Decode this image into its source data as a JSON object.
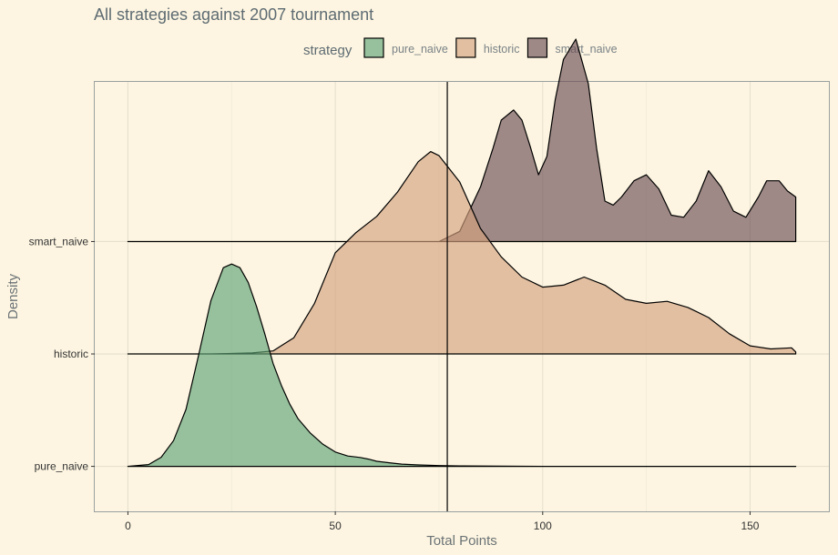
{
  "chart_data": {
    "type": "area",
    "subtype": "ridgeline-density",
    "title": "All strategies against 2007 tournament",
    "xlabel": "Total Points",
    "ylabel": "Density",
    "xlim": [
      -8,
      169
    ],
    "x_ticks": [
      0,
      50,
      100,
      150
    ],
    "x_tick_labels": [
      "0",
      "50",
      "100",
      "150"
    ],
    "grid": true,
    "legend": {
      "title": "strategy",
      "position": "top",
      "entries": [
        "pure_naive",
        "historic",
        "smart_naive"
      ]
    },
    "ridges": [
      "pure_naive",
      "historic",
      "smart_naive"
    ],
    "vline_x": 77,
    "ridge_scale": 1.8,
    "series": [
      {
        "name": "pure_naive",
        "color": "#5FA577",
        "x": [
          0,
          5,
          8,
          11,
          14,
          17,
          20,
          23,
          25,
          27,
          29,
          31,
          33,
          35,
          37,
          39,
          41,
          44,
          47,
          50,
          53,
          56,
          58,
          60,
          63,
          66,
          70,
          75,
          80,
          90,
          100,
          110,
          120,
          130,
          140,
          150,
          161
        ],
        "density": [
          0.0,
          0.009,
          0.045,
          0.127,
          0.282,
          0.545,
          0.818,
          0.982,
          1.0,
          0.982,
          0.909,
          0.791,
          0.655,
          0.509,
          0.4,
          0.309,
          0.236,
          0.164,
          0.109,
          0.071,
          0.051,
          0.044,
          0.036,
          0.025,
          0.018,
          0.011,
          0.007,
          0.004,
          0.002,
          0.001,
          0.0,
          0.0,
          0.0,
          0.0,
          0.0,
          0.0,
          0.0
        ]
      },
      {
        "name": "historic",
        "color": "#D4A17E",
        "x": [
          0,
          20,
          30,
          35,
          40,
          45,
          50,
          55,
          60,
          65,
          70,
          73,
          75,
          80,
          85,
          90,
          95,
          100,
          105,
          110,
          115,
          120,
          125,
          130,
          135,
          140,
          145,
          150,
          155,
          160,
          161
        ],
        "density": [
          0.0,
          0.0,
          0.005,
          0.015,
          0.08,
          0.25,
          0.5,
          0.6,
          0.68,
          0.8,
          0.95,
          1.0,
          0.98,
          0.85,
          0.62,
          0.48,
          0.38,
          0.33,
          0.34,
          0.38,
          0.34,
          0.27,
          0.25,
          0.26,
          0.23,
          0.18,
          0.1,
          0.04,
          0.025,
          0.03,
          0.01
        ]
      },
      {
        "name": "smart_naive",
        "color": "#6B4F55",
        "x": [
          0,
          75,
          80,
          85,
          88,
          90,
          93,
          95,
          97,
          99,
          101,
          103,
          105,
          108,
          111,
          113,
          115,
          117,
          119,
          122,
          125,
          128,
          131,
          134,
          137,
          140,
          143,
          146,
          149,
          152,
          154,
          157,
          159,
          161
        ],
        "density": [
          0.0,
          0.0,
          0.05,
          0.27,
          0.46,
          0.6,
          0.65,
          0.6,
          0.47,
          0.33,
          0.42,
          0.7,
          0.9,
          1.0,
          0.78,
          0.46,
          0.2,
          0.18,
          0.22,
          0.3,
          0.33,
          0.26,
          0.13,
          0.12,
          0.2,
          0.35,
          0.27,
          0.15,
          0.12,
          0.22,
          0.3,
          0.3,
          0.25,
          0.22
        ]
      }
    ]
  }
}
